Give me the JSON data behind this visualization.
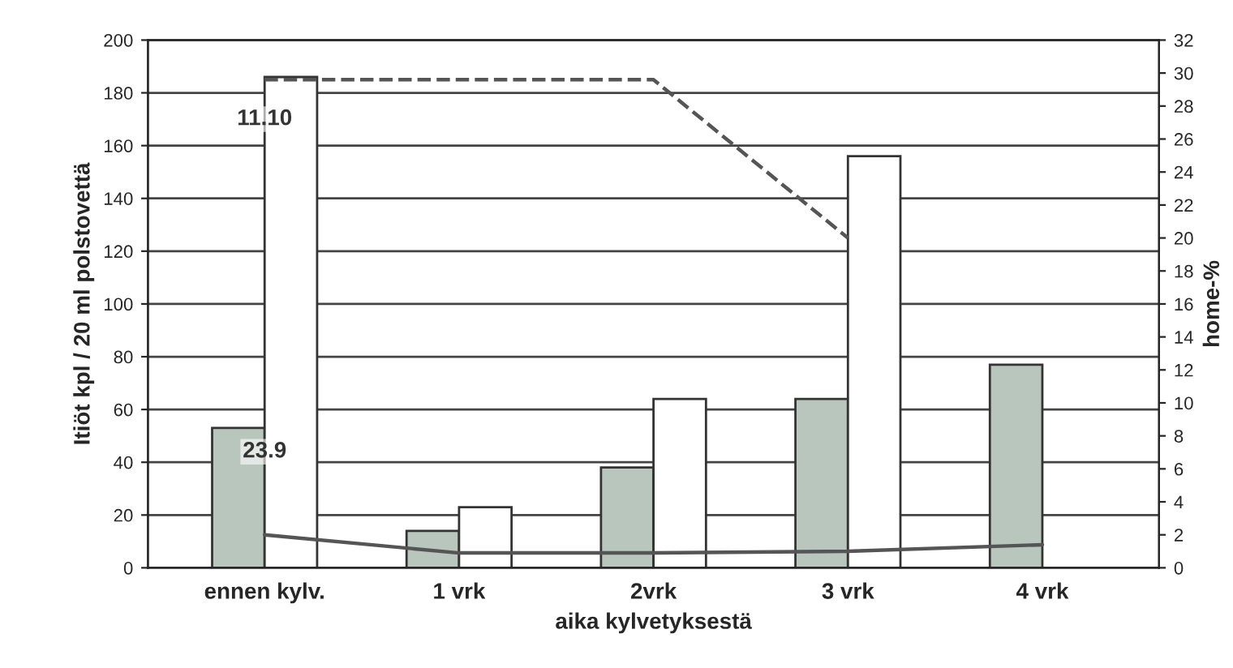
{
  "chart_data": {
    "type": "bar",
    "xlabel": "aika kylvetyksestä",
    "ylabel": "Itiöt kpl / 20 ml polstovettä",
    "y2label": "home-%",
    "categories": [
      "ennen kylv.",
      "1 vrk",
      "2vrk",
      "3 vrk",
      "4 vrk"
    ],
    "series": [
      {
        "color": "#b9c6be",
        "values": [
          53,
          14,
          38,
          64,
          77
        ]
      },
      {
        "color": "#ffffff",
        "values": [
          186,
          23,
          64,
          156,
          null
        ]
      },
      {
        "type": "line",
        "axis": "y2",
        "color": "#555555",
        "line_style": "dashed",
        "values": [
          29.6,
          29.6,
          29.6,
          20,
          null
        ]
      },
      {
        "type": "line",
        "axis": "y2",
        "color": "#555555",
        "line_style": "solid",
        "values": [
          2.0,
          0.9,
          0.9,
          1.0,
          1.4
        ]
      }
    ],
    "ylim": [
      0,
      200
    ],
    "yticks": [
      0,
      20,
      40,
      60,
      80,
      100,
      120,
      140,
      160,
      180,
      200
    ],
    "y2lim": [
      0,
      32
    ],
    "y2ticks": [
      0,
      2,
      4,
      6,
      8,
      10,
      12,
      14,
      16,
      18,
      20,
      22,
      24,
      26,
      28,
      30,
      32
    ],
    "annotations": [
      {
        "text": "23.9",
        "x": "ennen kylv.",
        "y": 44
      },
      {
        "text": "11.10",
        "x": "ennen kylv.",
        "y": 170
      }
    ],
    "grid": "y",
    "legend": false
  }
}
